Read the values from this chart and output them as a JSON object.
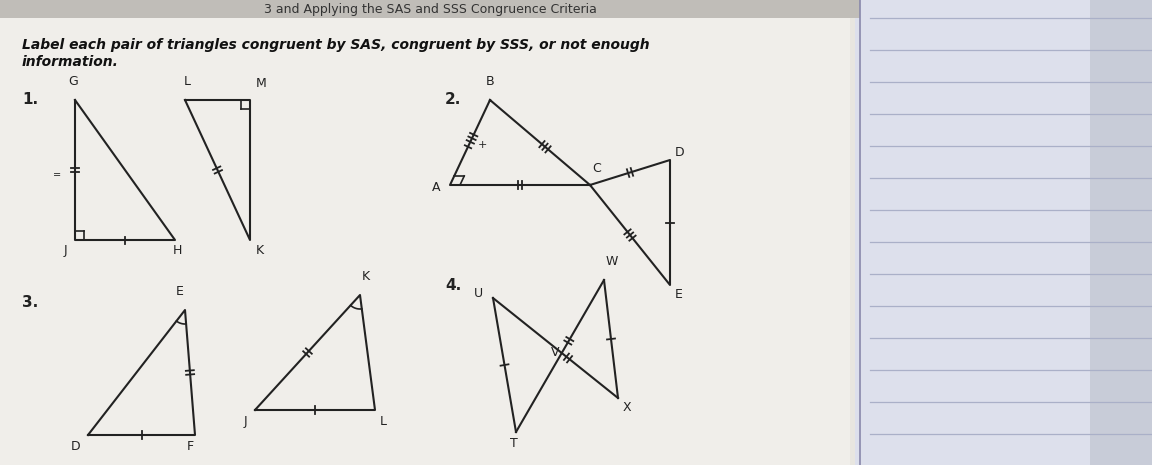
{
  "title_text": "Label each pair of triangles congruent by SAS, congruent by SSS, or not enough",
  "title_text2": "information.",
  "bg_color": "#e8e6e0",
  "notebook_color": "#d8dde8",
  "paper_color": "#f0eeea",
  "line_color": "#222222",
  "label_1": "1.",
  "label_2": "2.",
  "label_3": "3.",
  "label_4": "4."
}
